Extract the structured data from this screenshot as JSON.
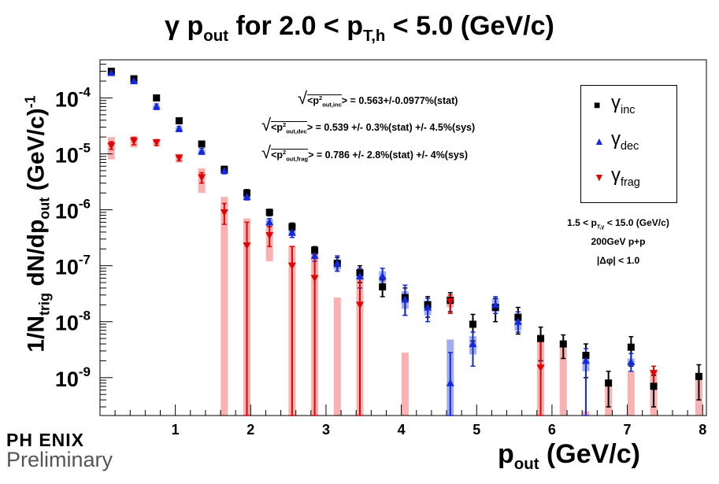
{
  "header": {
    "title_main": "γ p",
    "title_sub": "out",
    "title_mid": " for 2.0 < p",
    "title_sub2": "T,h",
    "title_end": " < 5.0 (GeV/c)"
  },
  "axes": {
    "ylabel_a": "1/N",
    "ylabel_sub": "trig",
    "ylabel_b": " dN/dp",
    "ylabel_sub2": "out",
    "ylabel_c": " (GeV/c)",
    "ylabel_sup": "-1",
    "xlabel_a": "p",
    "xlabel_sub": "out",
    "xlabel_b": " (GeV/c)"
  },
  "legend": {
    "inc_greek": "γ",
    "inc_sub": "inc",
    "dec_greek": "γ",
    "dec_sub": "dec",
    "frag_greek": "γ",
    "frag_sub": "frag"
  },
  "annotations": {
    "inc_pre": "<p",
    "inc_sup": "2",
    "inc_sub": "out,inc",
    "inc_val": "> = 0.563+/-0.0977%(stat)",
    "dec_pre": "<p",
    "dec_sup": "2",
    "dec_sub": "out,dec",
    "dec_val": "> = 0.539 +/- 0.3%(stat) +/- 4.5%(sys)",
    "frag_pre": "<p",
    "frag_sup": "2",
    "frag_sub": "out,frag",
    "frag_val": "> = 0.786 +/- 2.8%(stat) +/- 4%(sys)",
    "info_a": "1.5 < p",
    "info_sub": "T,γ",
    "info_b": " < 15.0 (GeV/c)",
    "info_line2": "200GeV p+p",
    "info_line3": "|Δφ| < 1.0"
  },
  "logo": {
    "top": "PH ENIX",
    "bottom": "Preliminary"
  },
  "chart_data": {
    "type": "scatter",
    "title": "γ pout for 2.0 < pT,h < 5.0 (GeV/c)",
    "xlabel": "pout (GeV/c)",
    "ylabel": "1/Ntrig dN/dpout (GeV/c)^-1",
    "xlim": [
      0.0,
      8.05
    ],
    "ylim": [
      2.1e-10,
      0.00048
    ],
    "yscale": "log",
    "xticks": [
      1,
      2,
      3,
      4,
      5,
      6,
      7,
      8
    ],
    "yticks": [
      "10^-9",
      "10^-8",
      "10^-7",
      "10^-6",
      "10^-5",
      "10^-4"
    ],
    "colors": {
      "inc": "#000000",
      "dec": "#1428dc",
      "dec_sys": "#8fa0ea",
      "frag": "#e00000",
      "frag_sys": "#f9a3a3"
    },
    "series": [
      {
        "name": "γ inc",
        "marker": "square",
        "color": "#000000",
        "x": [
          0.15,
          0.45,
          0.75,
          1.05,
          1.35,
          1.65,
          1.95,
          2.25,
          2.55,
          2.85,
          3.15,
          3.45,
          3.75,
          4.05,
          4.35,
          4.65,
          4.95,
          5.25,
          5.55,
          5.85,
          6.15,
          6.45,
          6.75,
          7.05,
          7.35,
          7.95
        ],
        "y": [
          0.0003,
          0.00022,
          0.0001,
          3.9e-05,
          1.5e-05,
          5.3e-06,
          2e-06,
          9e-07,
          5e-07,
          1.9e-07,
          1.1e-07,
          7.5e-08,
          4.2e-08,
          2.7e-08,
          2e-08,
          2.4e-08,
          9e-09,
          1.8e-08,
          1.2e-08,
          5e-09,
          4e-09,
          2.5e-09,
          8e-10,
          3.5e-09,
          7e-10,
          1.05e-09
        ],
        "ylo": [
          0.00027,
          0.0002,
          9e-05,
          3.5e-05,
          1.35e-05,
          4.6e-06,
          1.7e-06,
          7.8e-07,
          4.2e-07,
          1.6e-07,
          8e-08,
          5e-08,
          2.8e-08,
          1.3e-08,
          1.2e-08,
          1.5e-08,
          4.5e-09,
          1e-08,
          6e-09,
          2e-09,
          2.2e-09,
          1e-09,
          3e-10,
          1.6e-09,
          3e-10,
          4e-10
        ],
        "yhi": [
          0.00033,
          0.00024,
          0.00011,
          4.3e-05,
          1.65e-05,
          6e-06,
          2.3e-06,
          1.02e-06,
          5.8e-07,
          2.2e-07,
          1.4e-07,
          1e-07,
          5.6e-08,
          4e-08,
          2.8e-08,
          3.3e-08,
          1.35e-08,
          2.6e-08,
          1.8e-08,
          8e-09,
          5.8e-09,
          4e-09,
          1.3e-09,
          5.4e-09,
          1.1e-09,
          1.7e-09
        ]
      },
      {
        "name": "γ dec",
        "marker": "triangle-up",
        "color": "#1428dc",
        "x": [
          0.15,
          0.45,
          0.75,
          1.05,
          1.35,
          1.65,
          1.95,
          2.25,
          2.55,
          2.85,
          3.15,
          3.45,
          3.75,
          4.05,
          4.35,
          4.65,
          4.95,
          5.25,
          5.55,
          6.45,
          7.05
        ],
        "y": [
          0.00028,
          0.0002,
          7e-05,
          2.8e-05,
          1.1e-05,
          5e-06,
          1.7e-06,
          6e-07,
          3.9e-07,
          1.5e-07,
          1.1e-07,
          6.5e-08,
          6.5e-08,
          2.5e-08,
          1.8e-08,
          8e-10,
          4e-09,
          2e-08,
          1e-08,
          2e-09,
          1.9e-09
        ],
        "ylo": [
          0.000255,
          0.00018,
          6.2e-05,
          2.5e-05,
          9.8e-06,
          4.4e-06,
          1.5e-06,
          5e-07,
          3.2e-07,
          1.2e-07,
          8e-08,
          4e-08,
          4e-08,
          1.3e-08,
          1e-08,
          2.1e-10,
          1.6e-09,
          1.4e-08,
          6.5e-09,
          2.1e-10,
          1.3e-09
        ],
        "yhi": [
          0.00031,
          0.00022,
          7.8e-05,
          3.1e-05,
          1.25e-05,
          5.6e-06,
          1.9e-06,
          7e-07,
          4.6e-07,
          1.8e-07,
          1.5e-07,
          9e-08,
          9e-08,
          4.5e-08,
          2.6e-08,
          2.8e-09,
          6.5e-09,
          2.8e-08,
          1.5e-08,
          3.3e-09,
          2.7e-09
        ],
        "sys_lo": [
          0.00027,
          0.00019,
          6.6e-05,
          2.6e-05,
          1e-05,
          4.6e-06,
          1.5e-06,
          5.2e-07,
          3.4e-07,
          1.3e-07,
          8.5e-08,
          5e-08,
          5e-08,
          1.7e-08,
          1.3e-08,
          2.1e-10,
          2.6e-09,
          1.5e-08,
          7e-09,
          1.3e-09,
          1.6e-09
        ],
        "sys_hi": [
          0.000295,
          0.00021,
          7.4e-05,
          3e-05,
          1.2e-05,
          5.4e-06,
          1.9e-06,
          6.8e-07,
          4.4e-07,
          1.7e-07,
          1.3e-07,
          8e-08,
          8e-08,
          3.5e-08,
          2.4e-08,
          4.8e-09,
          5.5e-09,
          2.6e-08,
          1.4e-08,
          2.9e-09,
          2.2e-09
        ]
      },
      {
        "name": "γ frag",
        "marker": "triangle-down",
        "color": "#e00000",
        "x": [
          0.15,
          0.45,
          0.75,
          1.05,
          1.35,
          1.65,
          1.95,
          2.25,
          2.55,
          2.85,
          3.45,
          4.65,
          5.85,
          7.35
        ],
        "y": [
          1.4e-05,
          1.7e-05,
          1.6e-05,
          8.5e-06,
          3.8e-06,
          9e-07,
          2.3e-07,
          3.5e-07,
          1e-07,
          6e-08,
          2e-08,
          2.3e-08,
          1.5e-09,
          1.2e-09
        ],
        "ylo": [
          1.2e-05,
          1.45e-05,
          1.4e-05,
          7.5e-06,
          3e-06,
          5.5e-07,
          2.1e-10,
          2.2e-07,
          2.1e-10,
          2.1e-10,
          2.1e-10,
          1.4e-08,
          2.1e-10,
          7e-10
        ],
        "yhi": [
          1.65e-05,
          1.95e-05,
          1.8e-05,
          9.5e-06,
          4.6e-06,
          1.3e-06,
          6e-07,
          5e-07,
          2.2e-07,
          1.6e-07,
          7e-08,
          3e-08,
          5e-09,
          1.6e-09
        ],
        "sys_lo": [
          8e-06,
          1.3e-05,
          1.4e-05,
          7e-06,
          2e-06,
          2.1e-10,
          2.1e-10,
          1.2e-07,
          2.1e-10,
          2.1e-10,
          2.1e-10,
          1.8e-08,
          2.1e-10,
          2.1e-10
        ],
        "sys_hi": [
          2e-05,
          2.1e-05,
          1.8e-05,
          1e-05,
          5.5e-06,
          1.7e-06,
          7e-07,
          5.5e-07,
          2.3e-07,
          1.5e-07,
          5.5e-08,
          2.9e-08,
          5.5e-09,
          1.4e-09
        ]
      },
      {
        "name": "γ frag sys-only",
        "marker": "none",
        "color": "#f9a3a3",
        "x": [
          3.15,
          4.05,
          6.15,
          6.45,
          6.75,
          7.05,
          7.95
        ],
        "sys_lo": [
          2.1e-10,
          2.1e-10,
          2.1e-10,
          2.1e-10,
          2.1e-10,
          2.1e-10,
          2.1e-10
        ],
        "sys_hi": [
          2.7e-08,
          2.8e-09,
          4.5e-09,
          2.5e-10,
          8e-10,
          1.3e-09,
          1.1e-09
        ]
      }
    ]
  }
}
